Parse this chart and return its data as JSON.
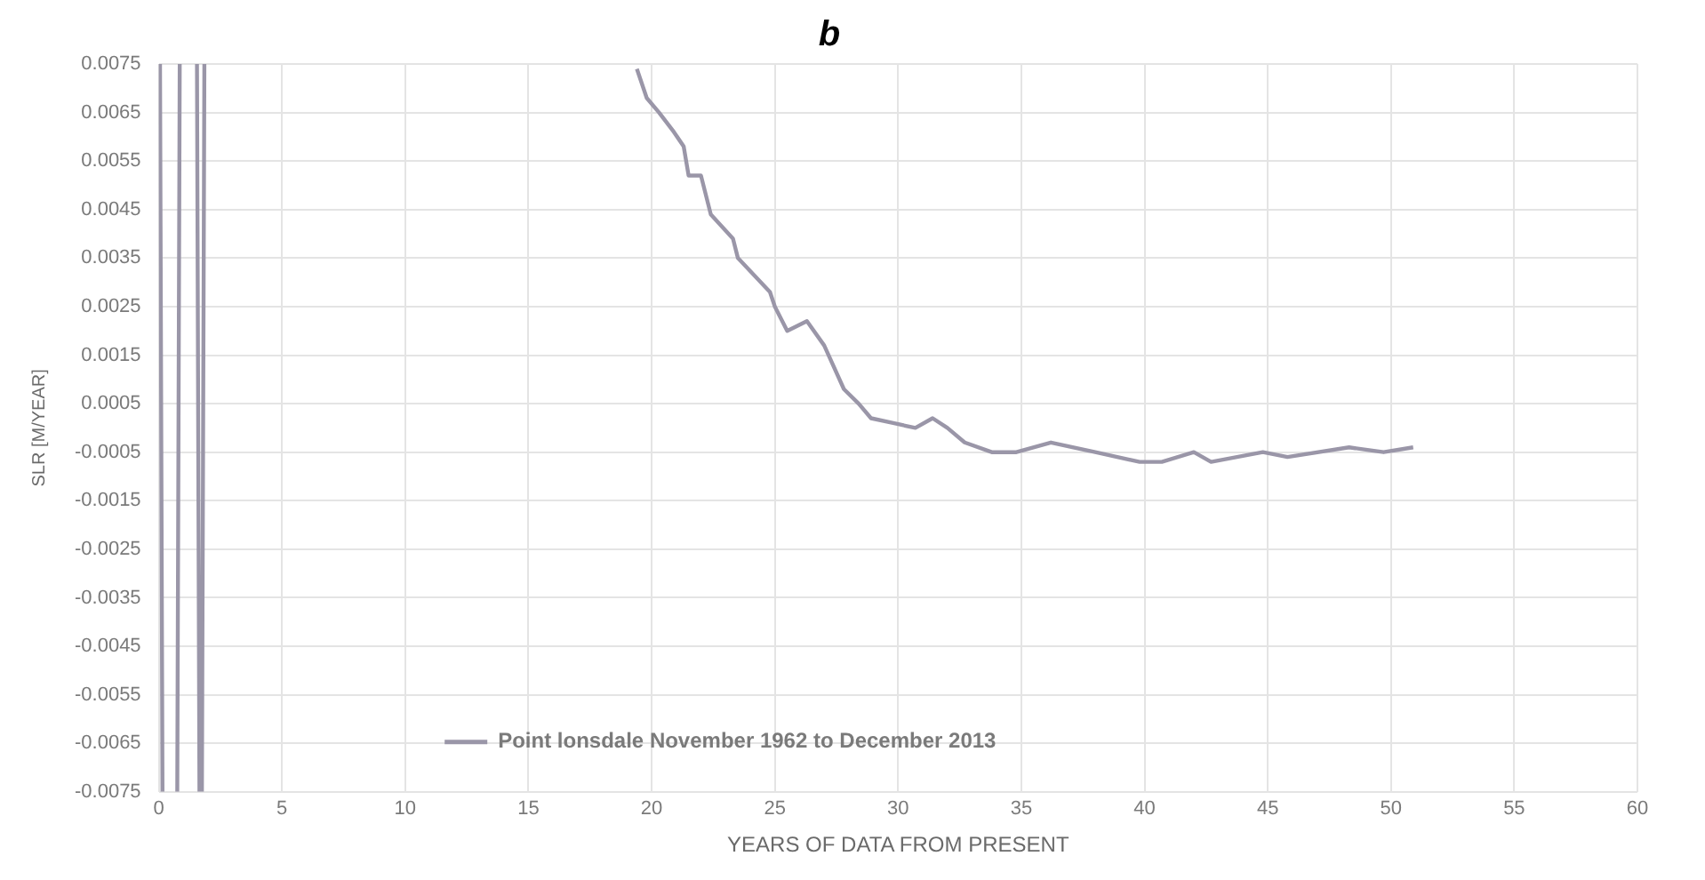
{
  "chart_data": {
    "type": "line",
    "title": "b",
    "xlabel": "YEARS OF DATA FROM PRESENT",
    "ylabel": "SLR [M/YEAR]",
    "xlim": [
      0,
      60
    ],
    "xticks": [
      0,
      5,
      10,
      15,
      20,
      25,
      30,
      35,
      40,
      45,
      50,
      55,
      60
    ],
    "ylim": [
      -0.0075,
      0.0075
    ],
    "yticks": [
      0.0075,
      0.0065,
      0.0055,
      0.0045,
      0.0035,
      0.0025,
      0.0015,
      0.0005,
      -0.0005,
      -0.0015,
      -0.0025,
      -0.0035,
      -0.0045,
      -0.0055,
      -0.0065,
      -0.0075
    ],
    "grid": true,
    "legend": "bottom",
    "marker": "none",
    "line_style": "solid",
    "series": [
      {
        "name": "Point lonsdale November 1962 to December 2013",
        "color": "#9a96a8",
        "x": [
          0.05,
          0.15,
          0.45,
          0.75,
          0.85,
          1.2,
          1.55,
          1.65,
          1.7,
          1.75,
          1.85,
          10,
          19.4,
          19.8,
          20.3,
          20.9,
          21.3,
          21.5,
          22.0,
          22.4,
          23.3,
          23.5,
          24.8,
          25.0,
          25.5,
          26.3,
          27.0,
          27.8,
          28.4,
          28.9,
          29.8,
          30.7,
          31.4,
          32.0,
          32.7,
          33.8,
          34.8,
          36.2,
          38.0,
          39.8,
          40.7,
          42.0,
          42.7,
          44.8,
          45.8,
          48.3,
          49.7,
          50.9
        ],
        "values": [
          0.0075,
          -0.0075,
          null,
          -0.0075,
          0.0075,
          null,
          0.0075,
          -0.0075,
          null,
          -0.0075,
          0.0075,
          null,
          0.0074,
          0.0068,
          0.0065,
          0.0061,
          0.0058,
          0.0052,
          0.0052,
          0.0044,
          0.0039,
          0.0035,
          0.0028,
          0.0025,
          0.002,
          0.0022,
          0.0017,
          0.0008,
          0.0005,
          0.0002,
          0.0001,
          0.0,
          0.0002,
          0.0,
          -0.0003,
          -0.0005,
          -0.0005,
          -0.0003,
          -0.0005,
          -0.0007,
          -0.0007,
          -0.0005,
          -0.0007,
          -0.0005,
          -0.0006,
          -0.0004,
          -0.0005,
          -0.0004
        ]
      }
    ]
  }
}
